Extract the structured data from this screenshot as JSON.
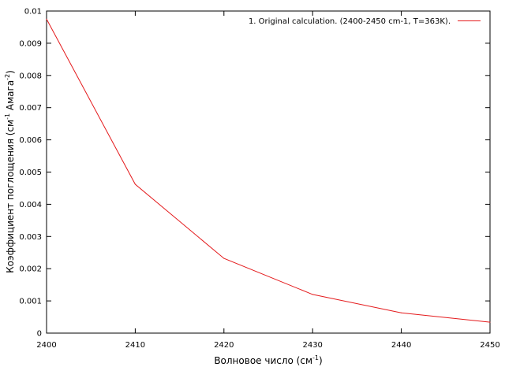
{
  "chart_data": {
    "type": "line",
    "xlabel": "Волновое число (см",
    "xlabel_sup": "-1",
    "xlabel_end": ")",
    "ylabel": "Коэффициент поглощения (см",
    "ylabel_sup1": "-1",
    "ylabel_mid": " Амага",
    "ylabel_sup2": "-2",
    "ylabel_end": ")",
    "xlim": [
      2400,
      2450
    ],
    "ylim": [
      0,
      0.01
    ],
    "x_ticks": [
      "2400",
      "2410",
      "2420",
      "2430",
      "2440",
      "2450"
    ],
    "x_tick_values": [
      2400,
      2410,
      2420,
      2430,
      2440,
      2450
    ],
    "y_ticks": [
      "0",
      "0.001",
      "0.002",
      "0.003",
      "0.004",
      "0.005",
      "0.006",
      "0.007",
      "0.008",
      "0.009",
      "0.01"
    ],
    "y_tick_values": [
      0,
      0.001,
      0.002,
      0.003,
      0.004,
      0.005,
      0.006,
      0.007,
      0.008,
      0.009,
      0.01
    ],
    "legend_position": "top-right",
    "series": [
      {
        "name": "1. Original calculation. (2400-2450 cm-1, T=363K).",
        "color": "#e41a1c",
        "x": [
          2400,
          2410,
          2420,
          2430,
          2440,
          2450
        ],
        "y": [
          0.00975,
          0.00462,
          0.00232,
          0.0012,
          0.00063,
          0.00034
        ]
      }
    ]
  }
}
